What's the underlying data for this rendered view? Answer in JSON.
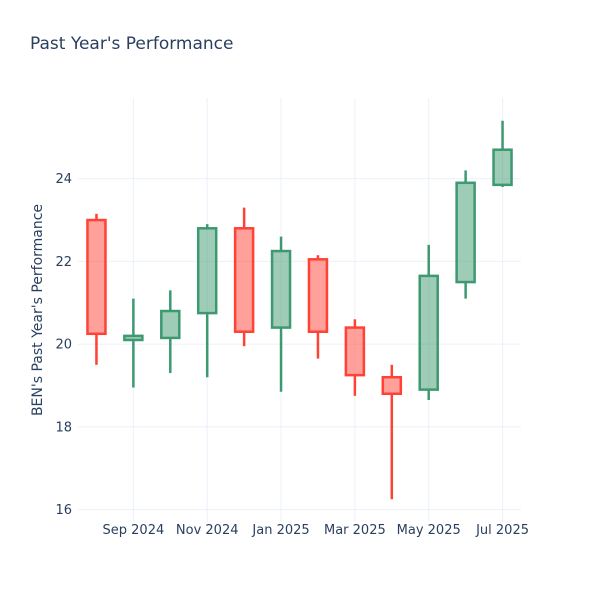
{
  "chart_data": {
    "type": "candlestick",
    "title": "Past Year's Performance",
    "ylabel": "BEN's Past Year's Performance",
    "xlabel": "",
    "x": [
      "Aug 2024",
      "Sep 2024",
      "Oct 2024",
      "Nov 2024",
      "Dec 2024",
      "Jan 2025",
      "Feb 2025",
      "Mar 2025",
      "Apr 2025",
      "May 2025",
      "Jun 2025",
      "Jul 2025"
    ],
    "ohlc": [
      {
        "open": 23.0,
        "high": 23.15,
        "low": 19.5,
        "close": 20.25
      },
      {
        "open": 20.1,
        "high": 21.1,
        "low": 18.95,
        "close": 20.2
      },
      {
        "open": 20.15,
        "high": 21.3,
        "low": 19.3,
        "close": 20.8
      },
      {
        "open": 20.75,
        "high": 22.9,
        "low": 19.2,
        "close": 22.8
      },
      {
        "open": 22.8,
        "high": 23.3,
        "low": 19.95,
        "close": 20.3
      },
      {
        "open": 20.4,
        "high": 22.6,
        "low": 18.85,
        "close": 22.25
      },
      {
        "open": 22.05,
        "high": 22.15,
        "low": 19.65,
        "close": 20.3
      },
      {
        "open": 20.4,
        "high": 20.6,
        "low": 18.75,
        "close": 19.25
      },
      {
        "open": 19.2,
        "high": 19.5,
        "low": 16.25,
        "close": 18.8
      },
      {
        "open": 18.9,
        "high": 22.4,
        "low": 18.65,
        "close": 21.65
      },
      {
        "open": 21.5,
        "high": 24.2,
        "low": 21.1,
        "close": 23.9
      },
      {
        "open": 23.85,
        "high": 25.4,
        "low": 23.8,
        "close": 24.7
      }
    ],
    "x_ticks": [
      {
        "index": 1,
        "label": "Sep 2024"
      },
      {
        "index": 3,
        "label": "Nov 2024"
      },
      {
        "index": 5,
        "label": "Jan 2025"
      },
      {
        "index": 7,
        "label": "Mar 2025"
      },
      {
        "index": 9,
        "label": "May 2025"
      },
      {
        "index": 11,
        "label": "Jul 2025"
      }
    ],
    "y_ticks": [
      {
        "value": 16,
        "label": "16"
      },
      {
        "value": 18,
        "label": "18"
      },
      {
        "value": 20,
        "label": "20"
      },
      {
        "value": 22,
        "label": "22"
      },
      {
        "value": 24,
        "label": "24"
      }
    ],
    "y_range": [
      15.7,
      25.95
    ],
    "grid": true,
    "legend": null,
    "colors": {
      "increasing": "#3D9970",
      "decreasing": "#FF4136",
      "grid": "#EBF0F8",
      "axis_text": "#2a3f5f",
      "title_text": "#2a3f5f",
      "background": "#ffffff"
    }
  }
}
